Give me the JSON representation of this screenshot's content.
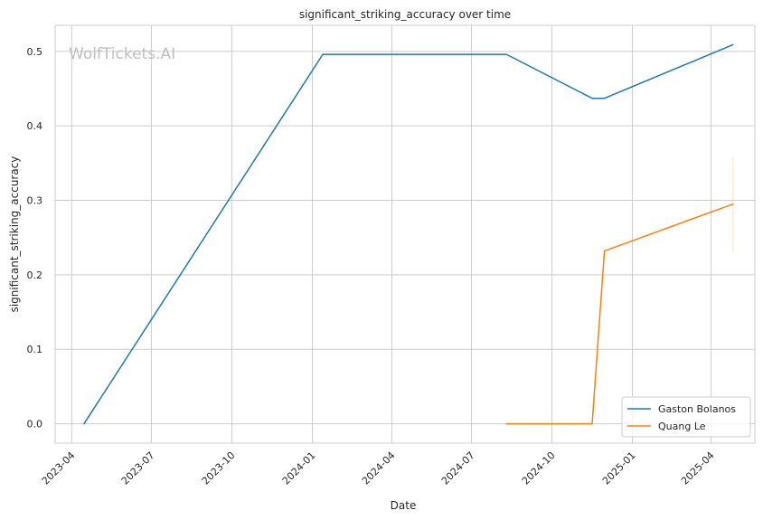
{
  "chart_data": {
    "type": "line",
    "title": "significant_striking_accuracy over time",
    "xlabel": "Date",
    "ylabel": "significant_striking_accuracy",
    "x_ticks": [
      "2023-04",
      "2023-07",
      "2023-10",
      "2024-01",
      "2024-04",
      "2024-07",
      "2024-10",
      "2025-01",
      "2025-04"
    ],
    "y_ticks": [
      "0.0",
      "0.1",
      "0.2",
      "0.3",
      "0.4",
      "0.5"
    ],
    "ylim": [
      -0.026,
      0.535
    ],
    "xlim": [
      "2023-03-13",
      "2025-05-21"
    ],
    "grid": true,
    "legend_position": "lower-right",
    "watermark": "WolfTickets.AI",
    "series": [
      {
        "name": "Gaston Bolanos",
        "color": "#1f77b4",
        "points": [
          {
            "x": "2023-04-15",
            "y": 0.0
          },
          {
            "x": "2024-01-13",
            "y": 0.496
          },
          {
            "x": "2024-08-10",
            "y": 0.496
          },
          {
            "x": "2024-11-16",
            "y": 0.437
          },
          {
            "x": "2024-11-30",
            "y": 0.437
          },
          {
            "x": "2025-04-26",
            "y": 0.509
          }
        ]
      },
      {
        "name": "Quang Le",
        "color": "#ff7f0e",
        "points": [
          {
            "x": "2024-08-10",
            "y": 0.0
          },
          {
            "x": "2024-11-16",
            "y": 0.0
          },
          {
            "x": "2024-11-30",
            "y": 0.232
          },
          {
            "x": "2025-04-26",
            "y": 0.295
          }
        ],
        "error_bar": {
          "x": "2025-04-26",
          "low": 0.232,
          "high": 0.358
        }
      }
    ]
  }
}
